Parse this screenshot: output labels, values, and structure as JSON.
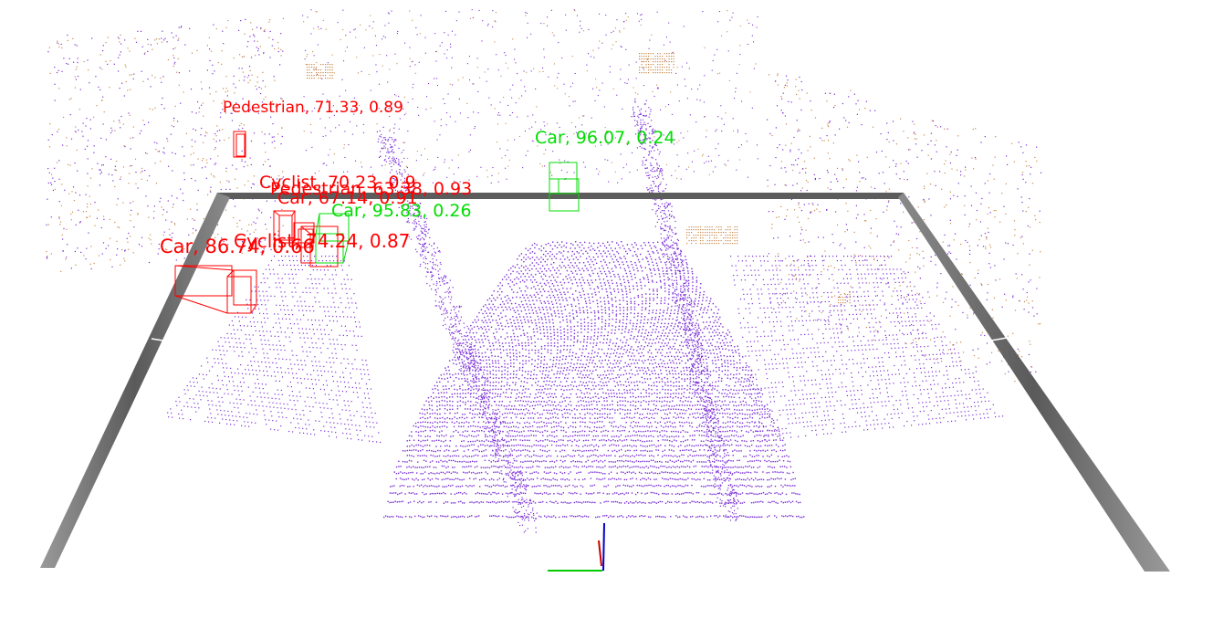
{
  "scene": {
    "background": "#ffffff",
    "colors": {
      "pointcloud_near": "#7b2fd6",
      "pointcloud_far": "#c8894a",
      "roi_frame": "#777777",
      "prediction": "#ff0000",
      "ground_truth": "#00dd00",
      "axis_x": "#00cc00",
      "axis_y": "#cc0000",
      "axis_z": "#0000cc"
    }
  },
  "detections": {
    "predictions": [
      {
        "label": "Pedestrian, 71.33, 0.89"
      },
      {
        "label": "Cyclist, 70.23, 0.9"
      },
      {
        "label": "Pedestrian, 63.38, 0.93"
      },
      {
        "label": "Car, 67.14, 0.91"
      },
      {
        "label": "Car, 86.74, 0.66"
      },
      {
        "label": "Cyclist, 74.24, 0.87"
      }
    ],
    "ground_truth": [
      {
        "label": "Car, 96.07, 0.24"
      },
      {
        "label": "Car, 95.83, 0.26"
      }
    ]
  }
}
